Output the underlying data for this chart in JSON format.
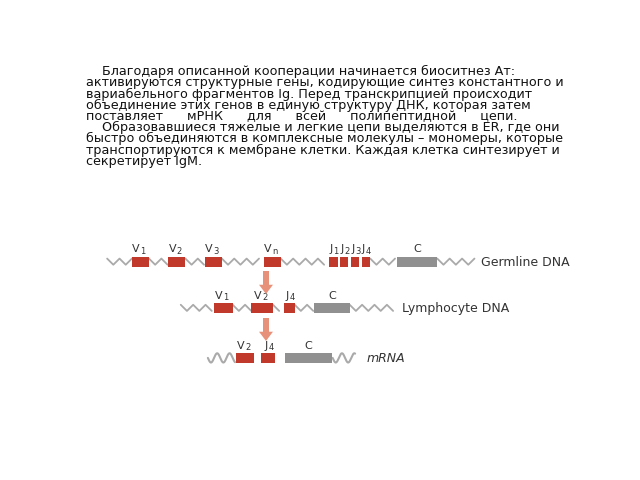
{
  "background_color": "#ffffff",
  "text_line1": "    Благодаря описанной кооперации начинается биоситнез Ат:",
  "text_line2": "активируются структурные гены, кодирующие синтез константного и",
  "text_line3": "вариабельного фрагментов Ig. Перед транскрипцией происходит",
  "text_line4": "объединение этих генов в единую структуру ДНК, которая затем",
  "text_line5": "поставляет      мРНК      для      всей      полипептидной      цепи.",
  "text_line6": "    Образовавшиеся тяжелые и легкие цепи выделяются в ER, где они",
  "text_line7": "быстро объединяются в комплексные молекулы – мономеры, которые",
  "text_line8": "транспортируются к мембране клетки. Каждая клетка синтезирует и",
  "text_line9": "секретирует IgM.",
  "red_color": "#c0392b",
  "gray_color": "#909090",
  "dna_color": "#aaaaaa",
  "arrow_color": "#e8917a",
  "label_color": "#333333",
  "row1_label": "Germline DNA",
  "row2_label": "Lymphocyte DNA",
  "row3_label": "mRNA",
  "font_size_text": 9.2,
  "font_size_label": 9,
  "font_size_gene": 8,
  "font_size_sub": 6
}
